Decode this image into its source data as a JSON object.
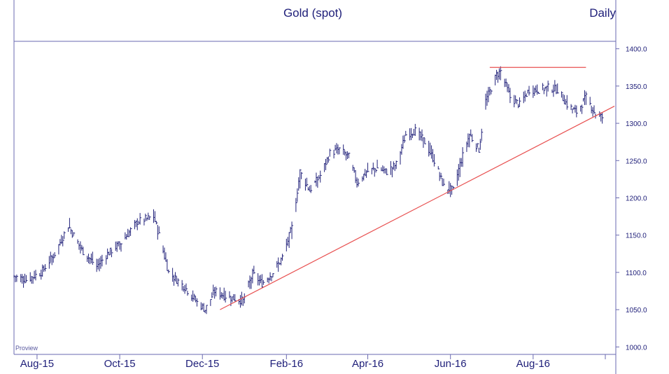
{
  "chart_data": {
    "type": "ohlc",
    "title": "Gold (spot)",
    "frequency_label": "Daily",
    "watermark": "Proview",
    "ylim": [
      990,
      1410
    ],
    "y_ticks": [
      "1000.0",
      "1050.0",
      "1100.0",
      "1150.0",
      "1200.0",
      "1250.0",
      "1300.0",
      "1350.0",
      "1400.0"
    ],
    "y_tick_values": [
      1000,
      1050,
      1100,
      1150,
      1200,
      1250,
      1300,
      1350,
      1400
    ],
    "x_ticks": [
      "Aug-15",
      "Oct-15",
      "Dec-15",
      "Feb-16",
      "Apr-16",
      "Jun-16",
      "Aug-16"
    ],
    "x_tick_dates": [
      "2015-08-01",
      "2015-10-01",
      "2015-12-01",
      "2016-02-01",
      "2016-04-01",
      "2016-06-01",
      "2016-08-01"
    ],
    "x_range": [
      "2015-07-15",
      "2016-10-01"
    ],
    "price_path": [
      {
        "date": "2015-07-15",
        "price": 1095
      },
      {
        "date": "2015-07-24",
        "price": 1090
      },
      {
        "date": "2015-08-04",
        "price": 1100
      },
      {
        "date": "2015-08-14",
        "price": 1125
      },
      {
        "date": "2015-08-24",
        "price": 1163
      },
      {
        "date": "2015-09-03",
        "price": 1130
      },
      {
        "date": "2015-09-14",
        "price": 1108
      },
      {
        "date": "2015-09-22",
        "price": 1125
      },
      {
        "date": "2015-10-02",
        "price": 1140
      },
      {
        "date": "2015-10-14",
        "price": 1168
      },
      {
        "date": "2015-10-26",
        "price": 1175
      },
      {
        "date": "2015-10-30",
        "price": 1150
      },
      {
        "date": "2015-11-06",
        "price": 1100
      },
      {
        "date": "2015-11-18",
        "price": 1080
      },
      {
        "date": "2015-11-27",
        "price": 1060
      },
      {
        "date": "2015-12-03",
        "price": 1050
      },
      {
        "date": "2015-12-10",
        "price": 1075
      },
      {
        "date": "2015-12-18",
        "price": 1068
      },
      {
        "date": "2015-12-31",
        "price": 1062
      },
      {
        "date": "2016-01-07",
        "price": 1098
      },
      {
        "date": "2016-01-14",
        "price": 1085
      },
      {
        "date": "2016-01-22",
        "price": 1100
      },
      {
        "date": "2016-01-29",
        "price": 1120
      },
      {
        "date": "2016-02-05",
        "price": 1160
      },
      {
        "date": "2016-02-11",
        "price": 1235
      },
      {
        "date": "2016-02-18",
        "price": 1210
      },
      {
        "date": "2016-02-26",
        "price": 1230
      },
      {
        "date": "2016-03-04",
        "price": 1260
      },
      {
        "date": "2016-03-11",
        "price": 1265
      },
      {
        "date": "2016-03-18",
        "price": 1255
      },
      {
        "date": "2016-03-24",
        "price": 1220
      },
      {
        "date": "2016-03-31",
        "price": 1235
      },
      {
        "date": "2016-04-08",
        "price": 1240
      },
      {
        "date": "2016-04-15",
        "price": 1235
      },
      {
        "date": "2016-04-22",
        "price": 1245
      },
      {
        "date": "2016-04-29",
        "price": 1285
      },
      {
        "date": "2016-05-06",
        "price": 1290
      },
      {
        "date": "2016-05-13",
        "price": 1275
      },
      {
        "date": "2016-05-20",
        "price": 1250
      },
      {
        "date": "2016-05-27",
        "price": 1215
      },
      {
        "date": "2016-06-03",
        "price": 1210
      },
      {
        "date": "2016-06-08",
        "price": 1245
      },
      {
        "date": "2016-06-15",
        "price": 1285
      },
      {
        "date": "2016-06-22",
        "price": 1265
      },
      {
        "date": "2016-06-27",
        "price": 1330
      },
      {
        "date": "2016-07-05",
        "price": 1365
      },
      {
        "date": "2016-07-08",
        "price": 1370
      },
      {
        "date": "2016-07-15",
        "price": 1335
      },
      {
        "date": "2016-07-22",
        "price": 1325
      },
      {
        "date": "2016-07-29",
        "price": 1345
      },
      {
        "date": "2016-08-05",
        "price": 1345
      },
      {
        "date": "2016-08-12",
        "price": 1348
      },
      {
        "date": "2016-08-19",
        "price": 1345
      },
      {
        "date": "2016-08-26",
        "price": 1325
      },
      {
        "date": "2016-09-02",
        "price": 1315
      },
      {
        "date": "2016-09-09",
        "price": 1335
      },
      {
        "date": "2016-09-16",
        "price": 1312
      },
      {
        "date": "2016-09-21",
        "price": 1308
      }
    ],
    "annotations": [
      {
        "name": "rising trendline",
        "color": "#e85050",
        "from": {
          "date": "2015-12-14",
          "price": 1050
        },
        "to": {
          "date": "2016-09-30",
          "price": 1323
        }
      },
      {
        "name": "resistance line",
        "color": "#e85050",
        "from": {
          "date": "2016-06-30",
          "price": 1375
        },
        "to": {
          "date": "2016-09-09",
          "price": 1375
        }
      }
    ],
    "colors": {
      "bars": "#22227a",
      "annotation": "#e85050",
      "text": "#20207a",
      "frame": "#6a6ab0"
    },
    "grid": false,
    "legend": "none"
  }
}
